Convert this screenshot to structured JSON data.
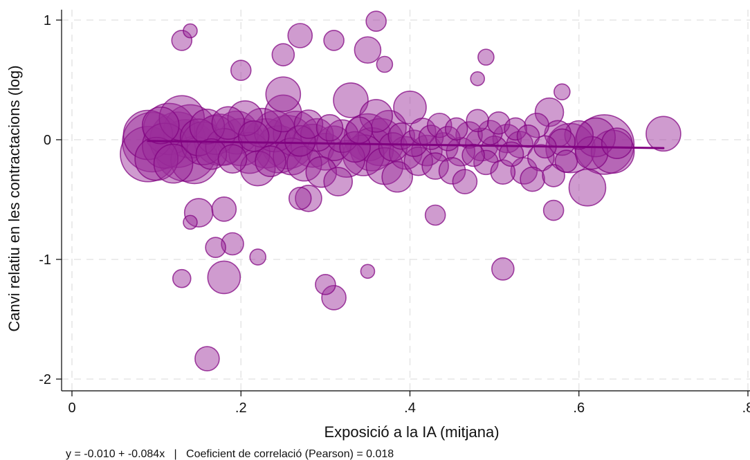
{
  "chart_data": {
    "type": "scatter",
    "title": "",
    "xlabel": "Exposició a la IA (mitjana)",
    "ylabel": "Canvi relatiu en les contractacions (log)",
    "xlim": [
      0,
      0.8
    ],
    "ylim": [
      -2,
      1
    ],
    "x_ticks": [
      {
        "value": 0,
        "label": "0"
      },
      {
        "value": 0.2,
        "label": ".2"
      },
      {
        "value": 0.4,
        "label": ".4"
      },
      {
        "value": 0.6,
        "label": ".6"
      },
      {
        "value": 0.8,
        "label": ".8"
      }
    ],
    "y_ticks": [
      {
        "value": 1,
        "label": "1"
      },
      {
        "value": 0,
        "label": "0"
      },
      {
        "value": -1,
        "label": "-1"
      },
      {
        "value": -2,
        "label": "-2"
      }
    ],
    "grid": true,
    "marker_style": "bubble",
    "colors": {
      "marker_fill": "#9b2f9b",
      "marker_stroke": "#800080",
      "fit_line": "#800080"
    },
    "fit_line": {
      "x": [
        0.09,
        0.7
      ],
      "y": [
        -0.01,
        -0.07
      ]
    },
    "note": "y = -0.010 + -0.084x   |   Coeficient de correlació (Pearson) = 0.018",
    "points": [
      {
        "x": 0.09,
        "y": -0.12,
        "size": 2.4
      },
      {
        "x": 0.09,
        "y": 0.04,
        "size": 2.1
      },
      {
        "x": 0.095,
        "y": -0.02,
        "size": 2.6
      },
      {
        "x": 0.1,
        "y": -0.16,
        "size": 1.8
      },
      {
        "x": 0.105,
        "y": 0.12,
        "size": 1.5
      },
      {
        "x": 0.11,
        "y": -0.05,
        "size": 1.9
      },
      {
        "x": 0.115,
        "y": 0.09,
        "size": 2.2
      },
      {
        "x": 0.12,
        "y": -0.2,
        "size": 1.6
      },
      {
        "x": 0.125,
        "y": 0.0,
        "size": 2.4
      },
      {
        "x": 0.13,
        "y": 0.18,
        "size": 1.9
      },
      {
        "x": 0.135,
        "y": -0.09,
        "size": 2.7
      },
      {
        "x": 0.14,
        "y": 0.07,
        "size": 2.3
      },
      {
        "x": 0.145,
        "y": -0.17,
        "size": 2.0
      },
      {
        "x": 0.15,
        "y": 0.02,
        "size": 1.5
      },
      {
        "x": 0.155,
        "y": -0.03,
        "size": 1.8
      },
      {
        "x": 0.16,
        "y": 0.11,
        "size": 1.4
      },
      {
        "x": 0.165,
        "y": -0.12,
        "size": 1.2
      },
      {
        "x": 0.17,
        "y": 0.04,
        "size": 1.6
      },
      {
        "x": 0.175,
        "y": 0.0,
        "size": 2.2
      },
      {
        "x": 0.18,
        "y": -0.06,
        "size": 1.5
      },
      {
        "x": 0.185,
        "y": 0.14,
        "size": 1.3
      },
      {
        "x": 0.19,
        "y": -0.16,
        "size": 1.1
      },
      {
        "x": 0.195,
        "y": 0.06,
        "size": 1.8
      },
      {
        "x": 0.2,
        "y": -0.02,
        "size": 2.0
      },
      {
        "x": 0.205,
        "y": 0.18,
        "size": 1.4
      },
      {
        "x": 0.21,
        "y": -0.11,
        "size": 1.7
      },
      {
        "x": 0.215,
        "y": 0.03,
        "size": 1.2
      },
      {
        "x": 0.22,
        "y": -0.24,
        "size": 1.4
      },
      {
        "x": 0.225,
        "y": 0.1,
        "size": 1.6
      },
      {
        "x": 0.23,
        "y": -0.03,
        "size": 2.1
      },
      {
        "x": 0.235,
        "y": -0.18,
        "size": 1.2
      },
      {
        "x": 0.24,
        "y": 0.07,
        "size": 1.7
      },
      {
        "x": 0.245,
        "y": -0.08,
        "size": 2.0
      },
      {
        "x": 0.25,
        "y": 0.22,
        "size": 1.5
      },
      {
        "x": 0.255,
        "y": -0.02,
        "size": 2.3
      },
      {
        "x": 0.26,
        "y": -0.14,
        "size": 1.5
      },
      {
        "x": 0.265,
        "y": 0.05,
        "size": 1.9
      },
      {
        "x": 0.27,
        "y": -0.01,
        "size": 1.2
      },
      {
        "x": 0.275,
        "y": -0.2,
        "size": 1.4
      },
      {
        "x": 0.28,
        "y": 0.13,
        "size": 1.1
      },
      {
        "x": 0.285,
        "y": -0.05,
        "size": 1.8
      },
      {
        "x": 0.29,
        "y": 0.04,
        "size": 1.3
      },
      {
        "x": 0.295,
        "y": -0.27,
        "size": 1.2
      },
      {
        "x": 0.3,
        "y": -0.1,
        "size": 1.5
      },
      {
        "x": 0.305,
        "y": 0.1,
        "size": 1.0
      },
      {
        "x": 0.31,
        "y": -0.03,
        "size": 1.4
      },
      {
        "x": 0.315,
        "y": -0.35,
        "size": 1.1
      },
      {
        "x": 0.32,
        "y": 0.03,
        "size": 1.3
      },
      {
        "x": 0.325,
        "y": -0.16,
        "size": 1.5
      },
      {
        "x": 0.33,
        "y": 0.33,
        "size": 1.4
      },
      {
        "x": 0.335,
        "y": -0.06,
        "size": 1.2
      },
      {
        "x": 0.34,
        "y": 0.08,
        "size": 1.0
      },
      {
        "x": 0.345,
        "y": -0.13,
        "size": 1.7
      },
      {
        "x": 0.35,
        "y": 0.02,
        "size": 2.0
      },
      {
        "x": 0.355,
        "y": -0.08,
        "size": 1.8
      },
      {
        "x": 0.36,
        "y": 0.2,
        "size": 1.3
      },
      {
        "x": 0.365,
        "y": -0.02,
        "size": 2.0
      },
      {
        "x": 0.37,
        "y": -0.22,
        "size": 1.5
      },
      {
        "x": 0.375,
        "y": 0.1,
        "size": 1.4
      },
      {
        "x": 0.38,
        "y": -0.06,
        "size": 1.1
      },
      {
        "x": 0.385,
        "y": -0.31,
        "size": 1.2
      },
      {
        "x": 0.39,
        "y": 0.03,
        "size": 1.0
      },
      {
        "x": 0.395,
        "y": -0.11,
        "size": 1.3
      },
      {
        "x": 0.4,
        "y": 0.27,
        "size": 1.3
      },
      {
        "x": 0.405,
        "y": -0.03,
        "size": 1.0
      },
      {
        "x": 0.41,
        "y": -0.18,
        "size": 1.1
      },
      {
        "x": 0.415,
        "y": 0.07,
        "size": 1.0
      },
      {
        "x": 0.42,
        "y": -0.09,
        "size": 1.2
      },
      {
        "x": 0.425,
        "y": 0.02,
        "size": 0.9
      },
      {
        "x": 0.43,
        "y": -0.22,
        "size": 1.0
      },
      {
        "x": 0.435,
        "y": 0.12,
        "size": 0.9
      },
      {
        "x": 0.44,
        "y": -0.06,
        "size": 1.1
      },
      {
        "x": 0.445,
        "y": 0.01,
        "size": 0.9
      },
      {
        "x": 0.45,
        "y": -0.26,
        "size": 1.0
      },
      {
        "x": 0.455,
        "y": 0.09,
        "size": 0.8
      },
      {
        "x": 0.46,
        "y": -0.1,
        "size": 1.1
      },
      {
        "x": 0.465,
        "y": -0.35,
        "size": 0.9
      },
      {
        "x": 0.47,
        "y": 0.04,
        "size": 1.0
      },
      {
        "x": 0.475,
        "y": -0.13,
        "size": 0.8
      },
      {
        "x": 0.48,
        "y": 0.16,
        "size": 0.8
      },
      {
        "x": 0.485,
        "y": -0.04,
        "size": 1.3
      },
      {
        "x": 0.49,
        "y": -0.19,
        "size": 0.9
      },
      {
        "x": 0.495,
        "y": 0.06,
        "size": 0.9
      },
      {
        "x": 0.5,
        "y": -0.08,
        "size": 1.0
      },
      {
        "x": 0.505,
        "y": 0.14,
        "size": 0.8
      },
      {
        "x": 0.51,
        "y": -0.27,
        "size": 0.9
      },
      {
        "x": 0.515,
        "y": 0.01,
        "size": 1.1
      },
      {
        "x": 0.52,
        "y": -0.12,
        "size": 0.9
      },
      {
        "x": 0.525,
        "y": 0.09,
        "size": 0.8
      },
      {
        "x": 0.53,
        "y": -0.04,
        "size": 1.0
      },
      {
        "x": 0.535,
        "y": -0.26,
        "size": 1.0
      },
      {
        "x": 0.54,
        "y": 0.03,
        "size": 0.8
      },
      {
        "x": 0.545,
        "y": -0.33,
        "size": 0.9
      },
      {
        "x": 0.55,
        "y": 0.12,
        "size": 0.9
      },
      {
        "x": 0.555,
        "y": -0.15,
        "size": 1.0
      },
      {
        "x": 0.56,
        "y": -0.06,
        "size": 0.8
      },
      {
        "x": 0.565,
        "y": 0.23,
        "size": 1.1
      },
      {
        "x": 0.57,
        "y": -0.3,
        "size": 0.8
      },
      {
        "x": 0.575,
        "y": 0.05,
        "size": 1.0
      },
      {
        "x": 0.58,
        "y": -0.02,
        "size": 1.0
      },
      {
        "x": 0.585,
        "y": -0.18,
        "size": 0.8
      },
      {
        "x": 0.59,
        "y": -0.07,
        "size": 2.1
      },
      {
        "x": 0.6,
        "y": 0.04,
        "size": 1.1
      },
      {
        "x": 0.61,
        "y": -0.4,
        "size": 1.5
      },
      {
        "x": 0.615,
        "y": -0.11,
        "size": 1.3
      },
      {
        "x": 0.62,
        "y": 0.02,
        "size": 1.6
      },
      {
        "x": 0.63,
        "y": -0.04,
        "size": 2.6
      },
      {
        "x": 0.64,
        "y": -0.1,
        "size": 1.8
      },
      {
        "x": 0.645,
        "y": -0.03,
        "size": 1.2
      },
      {
        "x": 0.7,
        "y": 0.05,
        "size": 1.4
      },
      {
        "x": 0.14,
        "y": 0.91,
        "size": 0.4
      },
      {
        "x": 0.13,
        "y": 0.83,
        "size": 0.7
      },
      {
        "x": 0.27,
        "y": 0.87,
        "size": 0.9
      },
      {
        "x": 0.31,
        "y": 0.83,
        "size": 0.7
      },
      {
        "x": 0.36,
        "y": 0.99,
        "size": 0.7
      },
      {
        "x": 0.35,
        "y": 0.75,
        "size": 1.0
      },
      {
        "x": 0.25,
        "y": 0.71,
        "size": 0.8
      },
      {
        "x": 0.37,
        "y": 0.63,
        "size": 0.5
      },
      {
        "x": 0.49,
        "y": 0.69,
        "size": 0.5
      },
      {
        "x": 0.2,
        "y": 0.58,
        "size": 0.7
      },
      {
        "x": 0.48,
        "y": 0.51,
        "size": 0.4
      },
      {
        "x": 0.58,
        "y": 0.4,
        "size": 0.5
      },
      {
        "x": 0.25,
        "y": 0.38,
        "size": 1.4
      },
      {
        "x": 0.43,
        "y": -0.63,
        "size": 0.7
      },
      {
        "x": 0.15,
        "y": -0.61,
        "size": 1.1
      },
      {
        "x": 0.18,
        "y": -0.58,
        "size": 0.9
      },
      {
        "x": 0.14,
        "y": -0.69,
        "size": 0.4
      },
      {
        "x": 0.57,
        "y": -0.59,
        "size": 0.7
      },
      {
        "x": 0.27,
        "y": -0.49,
        "size": 0.8
      },
      {
        "x": 0.28,
        "y": -0.49,
        "size": 1.0
      },
      {
        "x": 0.19,
        "y": -0.87,
        "size": 0.8
      },
      {
        "x": 0.17,
        "y": -0.9,
        "size": 0.7
      },
      {
        "x": 0.22,
        "y": -0.98,
        "size": 0.5
      },
      {
        "x": 0.51,
        "y": -1.08,
        "size": 0.8
      },
      {
        "x": 0.35,
        "y": -1.1,
        "size": 0.4
      },
      {
        "x": 0.13,
        "y": -1.16,
        "size": 0.6
      },
      {
        "x": 0.18,
        "y": -1.15,
        "size": 1.3
      },
      {
        "x": 0.3,
        "y": -1.21,
        "size": 0.7
      },
      {
        "x": 0.31,
        "y": -1.32,
        "size": 0.9
      },
      {
        "x": 0.16,
        "y": -1.83,
        "size": 0.9
      }
    ]
  }
}
